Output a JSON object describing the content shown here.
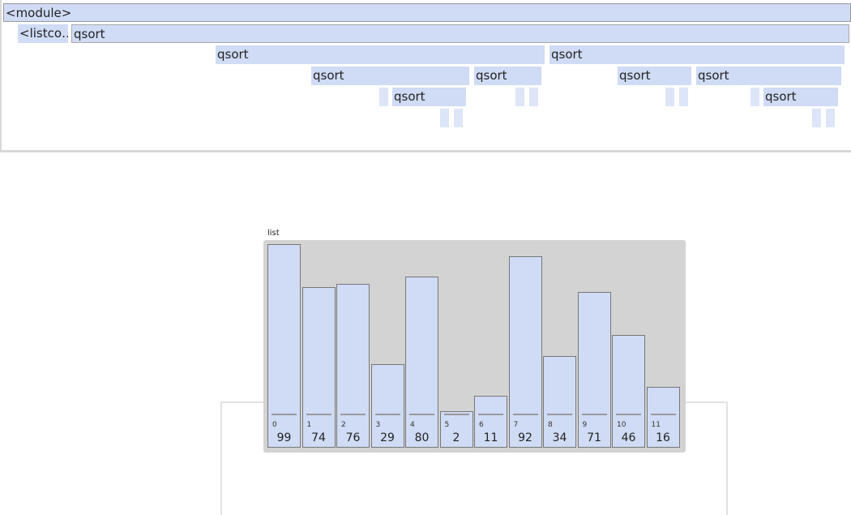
{
  "flame": {
    "frames": [
      {
        "label": "<module>",
        "depth": 0,
        "col": "root"
      },
      {
        "label": "<listco…",
        "depth": 1,
        "col": "listcomp"
      },
      {
        "label": "qsort",
        "depth": 1,
        "col": "a"
      },
      {
        "label": "qsort",
        "depth": 2,
        "col": "b"
      },
      {
        "label": "qsort",
        "depth": 2,
        "col": "c"
      },
      {
        "label": "qsort",
        "depth": 3,
        "col": "d"
      },
      {
        "label": "qsort",
        "depth": 3,
        "col": "e"
      },
      {
        "label": "qsort",
        "depth": 3,
        "col": "f"
      },
      {
        "label": "qsort",
        "depth": 3,
        "col": "g"
      },
      {
        "label": "qsort",
        "depth": 4,
        "col": "h"
      },
      {
        "label": "qsort",
        "depth": 4,
        "col": "i"
      }
    ]
  },
  "list": {
    "label": "list",
    "max": 99,
    "items": [
      {
        "index": "0",
        "value": 99
      },
      {
        "index": "1",
        "value": 74
      },
      {
        "index": "2",
        "value": 76
      },
      {
        "index": "3",
        "value": 29
      },
      {
        "index": "4",
        "value": 80
      },
      {
        "index": "5",
        "value": 2
      },
      {
        "index": "6",
        "value": 11
      },
      {
        "index": "7",
        "value": 92
      },
      {
        "index": "8",
        "value": 34
      },
      {
        "index": "9",
        "value": 71
      },
      {
        "index": "10",
        "value": 46
      },
      {
        "index": "11",
        "value": 16
      }
    ]
  },
  "colors": {
    "frame_fill": "#d0dbf5",
    "list_bg": "#d3d3d3"
  }
}
